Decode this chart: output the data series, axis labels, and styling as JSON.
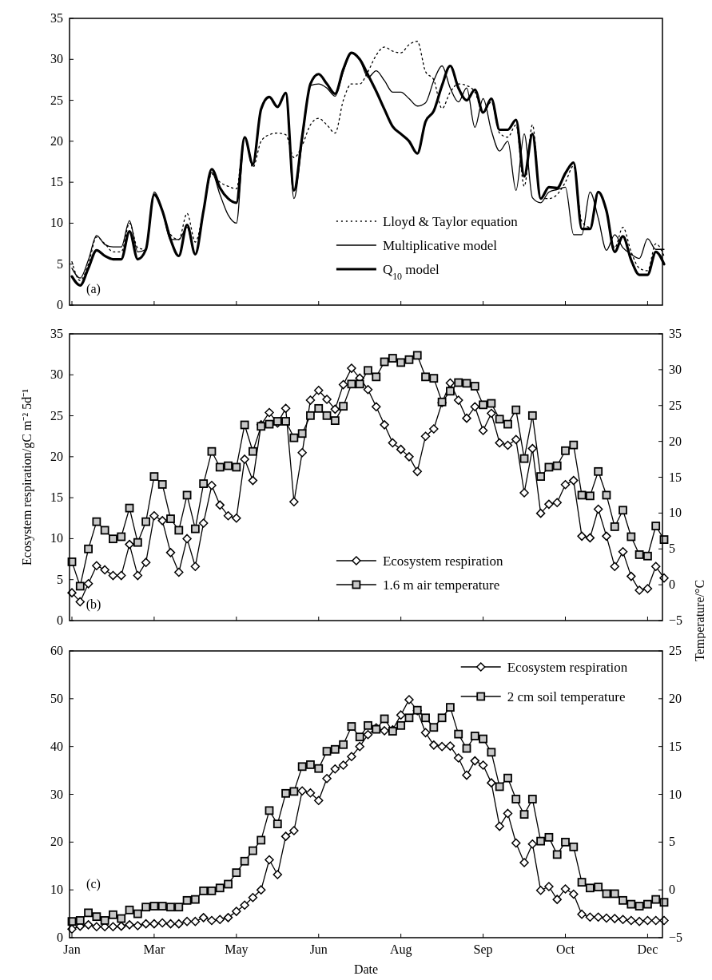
{
  "chart_data": [
    {
      "type": "line",
      "categories": [
        null,
        null,
        null,
        null,
        null,
        null,
        null,
        null,
        null,
        null,
        null,
        null,
        null,
        null,
        null,
        null,
        null,
        null,
        null,
        null,
        null,
        null,
        null,
        null,
        null,
        null,
        null,
        null,
        null,
        null,
        null,
        null,
        null,
        null,
        null,
        null,
        null,
        null,
        null,
        null,
        null,
        null,
        null,
        null,
        null,
        null,
        null,
        null,
        null,
        null,
        null,
        null,
        null,
        null,
        null,
        null,
        null,
        null,
        null,
        null,
        null,
        null,
        null,
        null,
        null,
        null,
        null,
        null,
        null,
        null,
        null,
        null,
        null
      ],
      "ylim": [
        0,
        35
      ],
      "yticks": [
        0,
        5,
        10,
        15,
        20,
        25,
        30,
        35
      ],
      "tick_labels": "y",
      "legend": "bottom right",
      "annotations": [
        "(a)"
      ],
      "series": [
        {
          "name": "Lloyd & Taylor equation",
          "color": "#000000",
          "line_style": "dotted",
          "values": [
            5.3,
            3.0,
            5.0,
            8.3,
            7.5,
            6.5,
            6.5,
            10.0,
            7.0,
            6.8,
            13.5,
            11.5,
            8.6,
            8.0,
            11.2,
            7.7,
            11.5,
            16.0,
            15.0,
            14.5,
            14.2,
            20.5,
            16.8,
            20.0,
            20.8,
            21.0,
            20.8,
            18.0,
            19.5,
            22.0,
            22.8,
            22.0,
            21.0,
            25.0,
            27.0,
            27.0,
            28.5,
            30.5,
            31.5,
            31.0,
            30.8,
            31.8,
            32.2,
            28.5,
            27.5,
            24.0,
            26.0,
            27.0,
            26.8,
            26.0,
            23.5,
            24.8,
            21.0,
            20.5,
            22.0,
            14.5,
            22.0,
            13.0,
            13.0,
            13.5,
            15.0,
            17.0,
            10.2,
            9.5,
            13.8,
            11.5,
            7.0,
            9.5,
            6.5,
            4.5,
            4.2,
            7.5,
            6.0
          ]
        },
        {
          "name": "Multiplicative model",
          "color": "#000000",
          "line_style": "solid",
          "values": [
            4.5,
            3.3,
            5.5,
            8.5,
            7.4,
            7.1,
            7.1,
            10.3,
            6.5,
            6.8,
            13.8,
            11.5,
            8.0,
            8.0,
            9.5,
            6.2,
            11.5,
            16.2,
            13.5,
            11.0,
            10.0,
            20.5,
            17.0,
            24.0,
            25.4,
            24.2,
            25.9,
            13.0,
            20.0,
            26.8,
            27.0,
            26.5,
            25.5,
            28.5,
            30.8,
            30.0,
            27.8,
            28.6,
            27.4,
            26.0,
            26.0,
            25.2,
            24.3,
            24.7,
            27.4,
            29.2,
            26.5,
            24.8,
            26.5,
            21.7,
            25.2,
            21.3,
            18.8,
            20.0,
            14.0,
            20.9,
            13.1,
            12.5,
            13.8,
            14.1,
            14.4,
            8.6,
            8.6,
            13.8,
            10.6,
            6.7,
            8.6,
            7.0,
            6.2,
            5.7,
            8.1,
            6.8,
            6.8
          ]
        },
        {
          "name": "Q$_{10}$ model",
          "color": "#000000",
          "line_style": "solid",
          "values": [
            3.5,
            2.4,
            4.5,
            6.7,
            6.0,
            5.6,
            5.6,
            9.0,
            5.6,
            6.8,
            13.5,
            11.5,
            8.0,
            6.0,
            9.8,
            6.2,
            11.5,
            16.6,
            14.3,
            13.0,
            12.5,
            20.5,
            17.2,
            23.9,
            25.4,
            24.2,
            25.9,
            14.0,
            20.6,
            27.0,
            28.2,
            27.0,
            25.8,
            28.8,
            30.8,
            30.0,
            28.1,
            26.1,
            23.9,
            21.8,
            20.9,
            20.0,
            18.5,
            22.4,
            23.7,
            26.8,
            29.2,
            26.5,
            25.0,
            26.3,
            23.5,
            25.2,
            21.4,
            21.4,
            22.6,
            15.7,
            20.9,
            13.0,
            14.4,
            14.3,
            16.1,
            17.4,
            9.3,
            9.3,
            13.8,
            11.5,
            6.5,
            8.4,
            5.5,
            3.7,
            3.7,
            6.5,
            5.0
          ]
        }
      ]
    },
    {
      "type": "line",
      "categories": [
        null,
        null,
        null,
        null,
        null,
        null,
        null,
        null,
        null,
        null,
        null,
        null,
        null,
        null,
        null,
        null,
        null,
        null,
        null,
        null,
        null,
        null,
        null,
        null,
        null,
        null,
        null,
        null,
        null,
        null,
        null,
        null,
        null,
        null,
        null,
        null,
        null,
        null,
        null,
        null,
        null,
        null,
        null,
        null,
        null,
        null,
        null,
        null,
        null,
        null,
        null,
        null,
        null,
        null,
        null,
        null,
        null,
        null,
        null,
        null,
        null,
        null,
        null,
        null,
        null,
        null,
        null,
        null,
        null,
        null,
        null,
        null,
        null
      ],
      "ylim": [
        0,
        35
      ],
      "yticks": [
        0,
        5,
        10,
        15,
        20,
        25,
        30,
        35
      ],
      "y2lim": [
        -5,
        35
      ],
      "y2ticks": [
        -5,
        0,
        5,
        10,
        15,
        20,
        25,
        30,
        35
      ],
      "tick_labels": "y",
      "legend": "bottom right",
      "annotations": [
        "(b)"
      ],
      "ylabel": "Ecosystem respiration/gC  m⁻² 5d⁻¹",
      "y2label": "Temperature/°C",
      "series": [
        {
          "name": "Ecosystem respiration",
          "color": "#000000",
          "marker": "diamond",
          "values": [
            3.4,
            2.3,
            4.5,
            6.7,
            6.2,
            5.5,
            5.5,
            9.3,
            5.5,
            7.1,
            12.8,
            12.2,
            8.3,
            5.9,
            10.0,
            6.6,
            11.9,
            16.5,
            14.1,
            12.8,
            12.5,
            19.7,
            17.1,
            23.9,
            25.4,
            24.1,
            25.9,
            14.5,
            20.5,
            26.9,
            28.1,
            27.0,
            25.8,
            28.8,
            30.8,
            29.6,
            28.2,
            26.1,
            23.9,
            21.7,
            20.9,
            20.0,
            18.2,
            22.5,
            23.4,
            26.6,
            29.0,
            26.9,
            24.7,
            26.1,
            23.2,
            25.3,
            21.7,
            21.4,
            22.1,
            15.6,
            21.0,
            13.1,
            14.2,
            14.4,
            16.6,
            17.1,
            10.3,
            10.1,
            13.6,
            10.3,
            6.6,
            8.4,
            5.4,
            3.7,
            3.9,
            6.6,
            5.2
          ]
        },
        {
          "name": "1.6 m air temperature",
          "color": "#000000",
          "marker": "square",
          "axis": "y2",
          "values": [
            3.2,
            -0.2,
            5.0,
            8.8,
            7.6,
            6.4,
            6.7,
            10.7,
            5.9,
            8.8,
            15.1,
            14.0,
            9.2,
            7.6,
            12.5,
            7.8,
            14.1,
            18.6,
            16.4,
            16.6,
            16.4,
            22.3,
            18.6,
            22.1,
            22.4,
            22.8,
            22.8,
            20.5,
            21.1,
            23.6,
            24.6,
            23.6,
            22.9,
            24.9,
            28.0,
            28.0,
            29.9,
            29.0,
            31.1,
            31.6,
            31.0,
            31.4,
            32.0,
            29.0,
            28.8,
            25.5,
            27.0,
            28.2,
            28.1,
            27.7,
            25.1,
            25.3,
            23.1,
            22.4,
            24.4,
            17.6,
            23.6,
            15.1,
            16.4,
            16.6,
            18.7,
            19.5,
            12.5,
            12.4,
            15.8,
            12.5,
            8.1,
            10.4,
            6.7,
            4.2,
            4.0,
            8.2,
            6.3
          ]
        }
      ]
    },
    {
      "type": "line",
      "categories": [
        "Jan",
        null,
        null,
        null,
        null,
        null,
        null,
        null,
        null,
        null,
        "Mar",
        null,
        null,
        null,
        null,
        null,
        null,
        null,
        null,
        null,
        "May",
        null,
        null,
        null,
        null,
        null,
        null,
        null,
        null,
        null,
        "Jun",
        null,
        null,
        null,
        null,
        null,
        null,
        null,
        null,
        null,
        "Aug",
        null,
        null,
        null,
        null,
        null,
        null,
        null,
        null,
        null,
        "Sep",
        null,
        null,
        null,
        null,
        null,
        null,
        null,
        null,
        null,
        "Oct",
        null,
        null,
        null,
        null,
        null,
        null,
        null,
        null,
        null,
        "Dec",
        null,
        null
      ],
      "ylim": [
        0,
        60
      ],
      "yticks": [
        0,
        10,
        20,
        30,
        40,
        50,
        60
      ],
      "y2lim": [
        -5,
        25
      ],
      "y2ticks": [
        -5,
        0,
        5,
        10,
        15,
        20,
        25
      ],
      "legend": "top right",
      "annotations": [
        "(c)"
      ],
      "xlabel": "Date",
      "series": [
        {
          "name": "Ecosystem respiration",
          "color": "#000000",
          "marker": "diamond",
          "values": [
            1.8,
            2.4,
            2.7,
            2.3,
            2.3,
            2.3,
            2.4,
            2.7,
            2.5,
            2.9,
            2.9,
            3.1,
            2.9,
            2.9,
            3.4,
            3.4,
            4.2,
            3.6,
            3.8,
            4.2,
            5.5,
            6.8,
            8.4,
            10.0,
            16.3,
            13.2,
            21.2,
            22.4,
            30.7,
            30.3,
            28.7,
            33.3,
            35.3,
            36.1,
            37.9,
            40.0,
            42.5,
            43.9,
            43.3,
            43.5,
            46.6,
            49.8,
            47.5,
            42.9,
            40.3,
            40.0,
            40.1,
            37.6,
            34.0,
            37.0,
            36.1,
            32.4,
            23.3,
            26.0,
            19.8,
            15.7,
            19.6,
            9.9,
            10.7,
            8.0,
            10.2,
            9.1,
            4.9,
            4.3,
            4.3,
            4.1,
            4.0,
            3.8,
            3.6,
            3.4,
            3.6,
            3.6,
            3.6
          ]
        },
        {
          "name": "2 cm soil temperature",
          "color": "#000000",
          "marker": "square",
          "axis": "y2",
          "values": [
            -3.3,
            -3.2,
            -2.4,
            -2.8,
            -3.2,
            -2.6,
            -3.0,
            -2.1,
            -2.5,
            -1.8,
            -1.7,
            -1.7,
            -1.8,
            -1.8,
            -1.1,
            -1.0,
            -0.1,
            -0.1,
            0.2,
            0.6,
            1.8,
            3.0,
            4.1,
            5.2,
            8.3,
            6.9,
            10.1,
            10.3,
            12.9,
            13.1,
            12.7,
            14.5,
            14.7,
            15.2,
            17.1,
            16.0,
            17.2,
            16.8,
            17.9,
            16.6,
            17.2,
            18.0,
            18.8,
            18.0,
            17.0,
            18.0,
            19.1,
            16.3,
            14.8,
            16.1,
            15.8,
            14.4,
            10.8,
            11.7,
            9.5,
            7.9,
            9.5,
            5.1,
            5.5,
            3.7,
            5.0,
            4.5,
            0.8,
            0.2,
            0.3,
            -0.4,
            -0.4,
            -1.1,
            -1.5,
            -1.7,
            -1.5,
            -1.0,
            -1.3
          ]
        }
      ]
    }
  ]
}
